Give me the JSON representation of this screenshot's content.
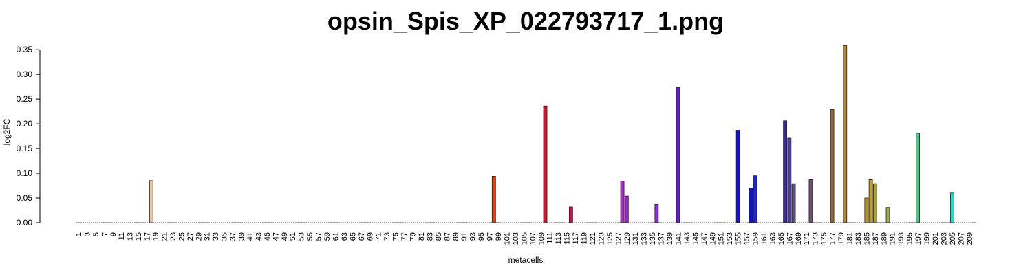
{
  "chart_data": {
    "type": "bar",
    "title": "opsin_Spis_XP_022793717_1.png",
    "xlabel": "metacells",
    "ylabel": "log2FC",
    "ylim": [
      0,
      0.36
    ],
    "yticks": [
      "0.00",
      "0.05",
      "0.10",
      "0.15",
      "0.20",
      "0.25",
      "0.30",
      "0.35"
    ],
    "n_categories": 210,
    "x_tick_every": 2,
    "grid": false,
    "legend": "none",
    "bars": [
      {
        "metacell": 18,
        "value": 0.085,
        "color": "#e8c39e"
      },
      {
        "metacell": 98,
        "value": 0.094,
        "color": "#e8400c"
      },
      {
        "metacell": 110,
        "value": 0.236,
        "color": "#e0102a"
      },
      {
        "metacell": 116,
        "value": 0.032,
        "color": "#d81048"
      },
      {
        "metacell": 128,
        "value": 0.084,
        "color": "#b02ccc"
      },
      {
        "metacell": 129,
        "value": 0.054,
        "color": "#a020c8"
      },
      {
        "metacell": 136,
        "value": 0.037,
        "color": "#8c28e0"
      },
      {
        "metacell": 141,
        "value": 0.274,
        "color": "#6418d8"
      },
      {
        "metacell": 155,
        "value": 0.187,
        "color": "#1010e0"
      },
      {
        "metacell": 158,
        "value": 0.07,
        "color": "#0c14e8"
      },
      {
        "metacell": 159,
        "value": 0.095,
        "color": "#1820e8"
      },
      {
        "metacell": 166,
        "value": 0.206,
        "color": "#3c2c9c"
      },
      {
        "metacell": 167,
        "value": 0.171,
        "color": "#4c3c98"
      },
      {
        "metacell": 168,
        "value": 0.079,
        "color": "#5c4c84"
      },
      {
        "metacell": 172,
        "value": 0.087,
        "color": "#6c5070"
      },
      {
        "metacell": 177,
        "value": 0.229,
        "color": "#8c6c3c"
      },
      {
        "metacell": 180,
        "value": 0.358,
        "color": "#b8842c"
      },
      {
        "metacell": 185,
        "value": 0.05,
        "color": "#b89430"
      },
      {
        "metacell": 186,
        "value": 0.087,
        "color": "#c0a030"
      },
      {
        "metacell": 187,
        "value": 0.079,
        "color": "#a8a040"
      },
      {
        "metacell": 190,
        "value": 0.031,
        "color": "#98b048"
      },
      {
        "metacell": 197,
        "value": 0.181,
        "color": "#50c080"
      },
      {
        "metacell": 205,
        "value": 0.06,
        "color": "#20e0d0"
      }
    ]
  }
}
